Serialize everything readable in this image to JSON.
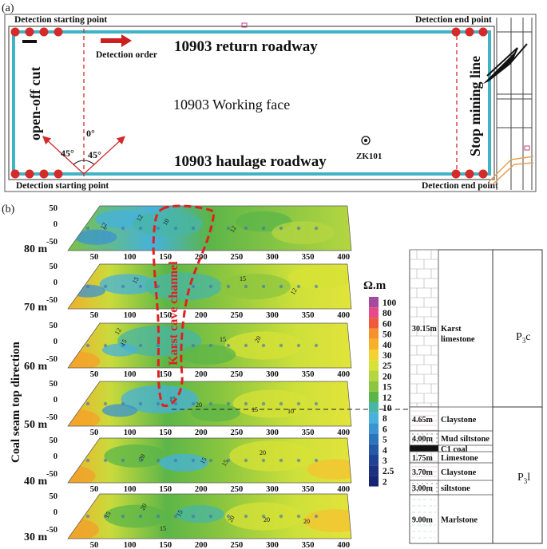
{
  "panel_a": {
    "label": "(a)",
    "start_top": "Detection starting point",
    "end_top": "Detection end point",
    "start_bottom": "Detection starting point",
    "end_bottom": "Detection end point",
    "detection_order": "Detection order",
    "return_roadway": "10903 return roadway",
    "working_face": "10903 Working face",
    "haulage_roadway": "10903 haulage roadway",
    "open_off_cut": "open-off cut",
    "stop_mining_line": "Stop mining line",
    "borehole": "ZK101",
    "angle_0": "0°",
    "angle_45_left": "45°",
    "angle_45_right": "45°",
    "colors": {
      "roadway": "#40b4c4",
      "marker": "#d42a2a",
      "arrow": "#d42a2a"
    }
  },
  "panel_b": {
    "label": "(b)",
    "y_axis_title": "Coal seam top direction",
    "depth_labels": [
      "80 m",
      "70 m",
      "60 m",
      "50 m",
      "40 m",
      "30 m"
    ],
    "x_ticks": [
      "50",
      "100",
      "150",
      "200",
      "250",
      "300",
      "350",
      "400"
    ],
    "side_ticks": [
      "50",
      "0",
      "-50"
    ],
    "karst_label": "Karst cave channel",
    "contour_labels": [
      "12",
      "12",
      "10",
      "12",
      "15",
      "15",
      "12",
      "12",
      "20",
      "15",
      "15",
      "15",
      "10",
      "20",
      "15",
      "20",
      "15",
      "15",
      "20",
      "15",
      "20",
      "20",
      "15",
      "20",
      "15",
      "20"
    ],
    "legend": {
      "unit": "Ω.m",
      "entries": [
        {
          "label": "100",
          "color": "#a64aa0"
        },
        {
          "label": "80",
          "color": "#e64a8a"
        },
        {
          "label": "60",
          "color": "#f05a3a"
        },
        {
          "label": "50",
          "color": "#f5902a"
        },
        {
          "label": "40",
          "color": "#f7b02a"
        },
        {
          "label": "30",
          "color": "#f5d232"
        },
        {
          "label": "25",
          "color": "#d7e236"
        },
        {
          "label": "20",
          "color": "#b5d640"
        },
        {
          "label": "15",
          "color": "#8cc63f"
        },
        {
          "label": "12",
          "color": "#5cb548"
        },
        {
          "label": "10",
          "color": "#48b6a6"
        },
        {
          "label": "8",
          "color": "#46b2dc"
        },
        {
          "label": "6",
          "color": "#3b93d2"
        },
        {
          "label": "5",
          "color": "#2c74bc"
        },
        {
          "label": "4",
          "color": "#2459a8"
        },
        {
          "label": "3",
          "color": "#1f4294"
        },
        {
          "label": "2.5",
          "color": "#1a3182"
        },
        {
          "label": "2",
          "color": "#162572"
        }
      ]
    },
    "strata": [
      {
        "thickness": "30.15m",
        "name": "Karst\nlimestone"
      },
      {
        "thickness": "4.65m",
        "name": "Claystone"
      },
      {
        "thickness": "4.00m",
        "name": "Mud siltstone"
      },
      {
        "thickness": "",
        "name": "C1 coal"
      },
      {
        "thickness": "1.75m",
        "name": "Limestone"
      },
      {
        "thickness": "3.70m",
        "name": "Claystone"
      },
      {
        "thickness": "3.00m",
        "name": "siltstone"
      },
      {
        "thickness": "9.00m",
        "name": "Marlstone"
      }
    ],
    "formation_upper_main": "P",
    "formation_upper_sub": "3",
    "formation_upper_suffix": "c",
    "formation_lower_main": "P",
    "formation_lower_sub": "3",
    "formation_lower_suffix": "l"
  }
}
